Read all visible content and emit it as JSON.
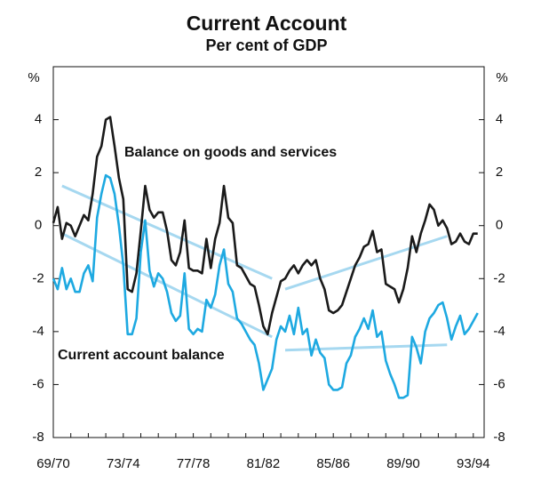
{
  "chart_data": {
    "type": "line",
    "title": "Current Account",
    "subtitle": "Per cent of GDP",
    "y_unit_label": "%",
    "y2_unit_label": "%",
    "annotations": [
      "Balance on goods and services",
      "Current account balance"
    ],
    "categories": [
      "69/70",
      null,
      null,
      null,
      null,
      null,
      null,
      null,
      null,
      null,
      null,
      null,
      null,
      null,
      null,
      null,
      "73/74",
      null,
      null,
      null,
      null,
      null,
      null,
      null,
      null,
      null,
      null,
      null,
      null,
      null,
      null,
      null,
      "77/78",
      null,
      null,
      null,
      null,
      null,
      null,
      null,
      null,
      null,
      null,
      null,
      null,
      null,
      null,
      null,
      "81/82",
      null,
      null,
      null,
      null,
      null,
      null,
      null,
      null,
      null,
      null,
      null,
      null,
      null,
      null,
      null,
      "85/86",
      null,
      null,
      null,
      null,
      null,
      null,
      null,
      null,
      null,
      null,
      null,
      null,
      null,
      null,
      null,
      "89/90",
      null,
      null,
      null,
      null,
      null,
      null,
      null,
      null,
      null,
      null,
      null,
      null,
      null,
      null,
      null,
      "93/94",
      null
    ],
    "series": [
      {
        "name": "Balance on goods and services",
        "color": "#1a1a1a",
        "values": [
          0.1,
          0.7,
          -0.5,
          0.1,
          0,
          -0.4,
          0,
          0.4,
          0.2,
          1.2,
          2.6,
          3.0,
          4.0,
          4.1,
          3.0,
          1.8,
          1.0,
          -2.4,
          -2.5,
          -1.8,
          -0.2,
          1.5,
          0.6,
          0.3,
          0.5,
          0.5,
          -0.2,
          -1.3,
          -1.5,
          -1.0,
          0.2,
          -1.6,
          -1.7,
          -1.7,
          -1.8,
          -0.5,
          -1.6,
          -0.5,
          0.1,
          1.5,
          0.3,
          0.1,
          -1.5,
          -1.6,
          -1.9,
          -2.2,
          -2.3,
          -3.0,
          -3.8,
          -4.1,
          -3.3,
          -2.7,
          -2.1,
          -2.0,
          -1.7,
          -1.5,
          -1.8,
          -1.5,
          -1.3,
          -1.5,
          -1.3,
          -2.0,
          -2.4,
          -3.2,
          -3.3,
          -3.2,
          -3.0,
          -2.5,
          -2.0,
          -1.5,
          -1.2,
          -0.8,
          -0.7,
          -0.2,
          -1.0,
          -0.9,
          -2.2,
          -2.3,
          -2.4,
          -2.9,
          -2.4,
          -1.6,
          -0.4,
          -1.0,
          -0.3,
          0.2,
          0.8,
          0.6,
          0,
          0.2,
          -0.1,
          -0.7,
          -0.6,
          -0.3,
          -0.6,
          -0.7,
          -0.3,
          -0.3
        ]
      },
      {
        "name": "Current account balance",
        "color": "#1ea9e1",
        "values": [
          -2.0,
          -2.4,
          -1.6,
          -2.4,
          -2.0,
          -2.5,
          -2.5,
          -1.8,
          -1.5,
          -2.1,
          0.3,
          1.2,
          1.9,
          1.8,
          1.2,
          0,
          -1.5,
          -4.1,
          -4.1,
          -3.5,
          -1.0,
          0.2,
          -1.7,
          -2.3,
          -1.8,
          -2.0,
          -2.5,
          -3.3,
          -3.6,
          -3.4,
          -1.8,
          -3.9,
          -4.1,
          -3.9,
          -4.0,
          -2.8,
          -3.1,
          -2.6,
          -1.5,
          -0.9,
          -2.2,
          -2.5,
          -3.5,
          -3.7,
          -4.0,
          -4.3,
          -4.5,
          -5.2,
          -6.2,
          -5.8,
          -5.4,
          -4.3,
          -3.8,
          -4.0,
          -3.4,
          -4.1,
          -3.1,
          -4.1,
          -3.9,
          -4.9,
          -4.3,
          -4.8,
          -5.0,
          -6.0,
          -6.2,
          -6.2,
          -6.1,
          -5.2,
          -4.9,
          -4.2,
          -3.9,
          -3.5,
          -3.9,
          -3.2,
          -4.2,
          -4.0,
          -5.1,
          -5.6,
          -6.0,
          -6.5,
          -6.5,
          -6.4,
          -4.2,
          -4.6,
          -5.2,
          -4.0,
          -3.5,
          -3.3,
          -3.0,
          -2.9,
          -3.5,
          -4.3,
          -3.8,
          -3.4,
          -4.1,
          -3.9,
          -3.6,
          -3.3
        ]
      }
    ],
    "trend_color": "#a6d8f0",
    "trend_lines": [
      {
        "x": [
          2,
          50
        ],
        "values": [
          1.5,
          -2.0
        ]
      },
      {
        "x": [
          53,
          90
        ],
        "values": [
          -2.4,
          -0.4
        ]
      },
      {
        "x": [
          2,
          50
        ],
        "values": [
          -0.3,
          -4.2
        ]
      },
      {
        "x": [
          53,
          90
        ],
        "values": [
          -4.7,
          -4.5
        ]
      }
    ],
    "ylim": [
      -8,
      6
    ],
    "yticks": [
      -8,
      -6,
      -4,
      -2,
      0,
      2,
      4
    ],
    "y2lim": [
      -8,
      6
    ],
    "y2ticks": [
      -8,
      -6,
      -4,
      -2,
      0,
      2,
      4
    ]
  }
}
